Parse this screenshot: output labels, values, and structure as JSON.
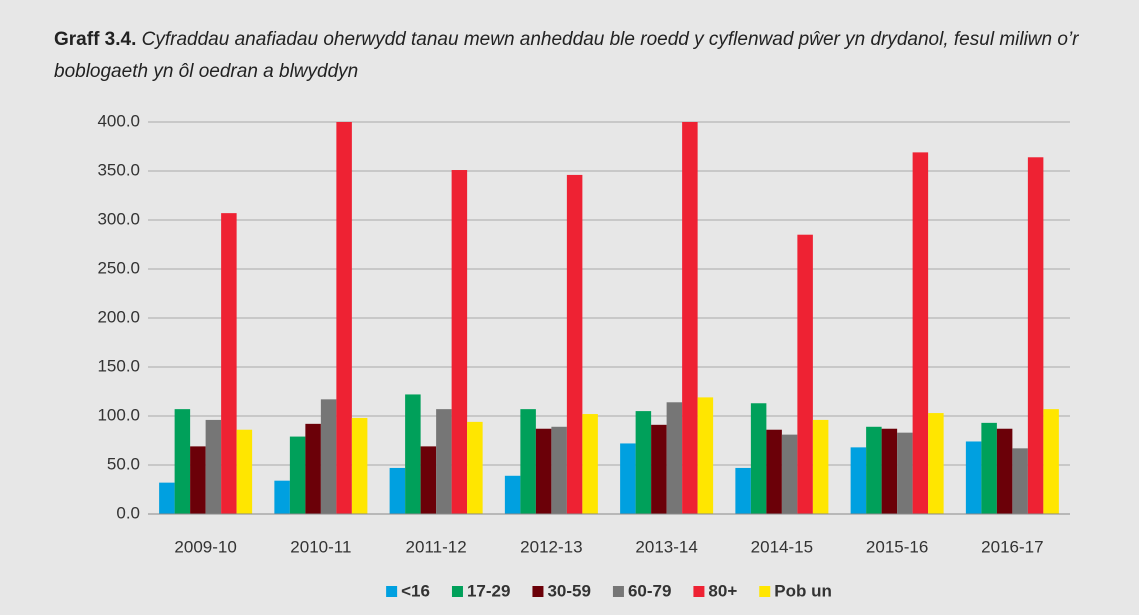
{
  "chart_data": {
    "type": "bar",
    "title_label": "Graff 3.4.",
    "title": "Cyfraddau anafiadau oherwydd tanau mewn anheddau ble roedd y cyflenwad pŵer yn drydanol, fesul miliwn o’r boblogaeth yn ôl oedran a blwyddyn",
    "categories": [
      "2009-10",
      "2010-11",
      "2011-12",
      "2012-13",
      "2013-14",
      "2014-15",
      "2015-16",
      "2016-17"
    ],
    "series": [
      {
        "name": "<16",
        "color": "#00a0e0",
        "values": [
          32,
          34,
          47,
          39,
          72,
          47,
          68,
          74
        ]
      },
      {
        "name": "17-29",
        "color": "#00a05a",
        "values": [
          107,
          79,
          122,
          107,
          105,
          113,
          89,
          93
        ]
      },
      {
        "name": "30-59",
        "color": "#6b0008",
        "values": [
          69,
          92,
          69,
          87,
          91,
          86,
          87,
          87
        ]
      },
      {
        "name": "60-79",
        "color": "#767676",
        "values": [
          96,
          117,
          107,
          89,
          114,
          81,
          83,
          67
        ]
      },
      {
        "name": "80+",
        "color": "#ee2233",
        "values": [
          307,
          400,
          351,
          346,
          400,
          285,
          369,
          364
        ]
      },
      {
        "name": "Pob un",
        "color": "#ffe600",
        "values": [
          86,
          98,
          94,
          102,
          119,
          96,
          103,
          107
        ]
      }
    ],
    "ylim": [
      0,
      400
    ],
    "yticks": [
      {
        "value": 0,
        "label": "0.0"
      },
      {
        "value": 50,
        "label": "50.0"
      },
      {
        "value": 100,
        "label": "100.0"
      },
      {
        "value": 150,
        "label": "150.0"
      },
      {
        "value": 200,
        "label": "200.0"
      },
      {
        "value": 250,
        "label": "250.0"
      },
      {
        "value": 300,
        "label": "300.0"
      },
      {
        "value": 350,
        "label": "350.0"
      },
      {
        "value": 400,
        "label": "400.0"
      }
    ],
    "grid": true,
    "legend": "bottom"
  }
}
